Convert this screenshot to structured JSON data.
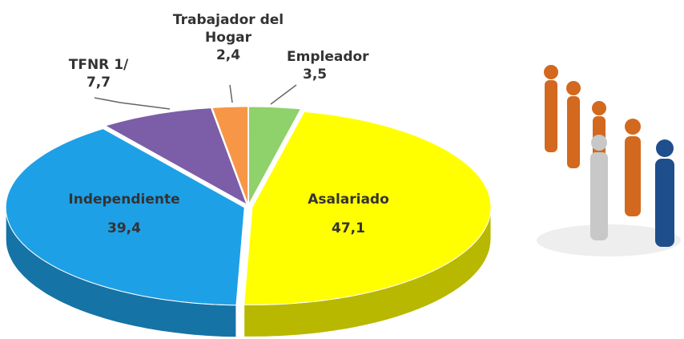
{
  "chart_data": {
    "type": "pie",
    "categories": [
      "Empleador",
      "Asalariado",
      "Independiente",
      "TFNR 1/",
      "Trabajador del Hogar"
    ],
    "values": [
      3.5,
      47.1,
      39.4,
      7.7,
      2.4
    ],
    "value_labels": [
      "3,5",
      "47,1",
      "39,4",
      "7,7",
      "2,4"
    ],
    "colors": [
      "#8fd16a",
      "#ffff00",
      "#1ea0e6",
      "#7b5ea7",
      "#f79646"
    ]
  }
}
